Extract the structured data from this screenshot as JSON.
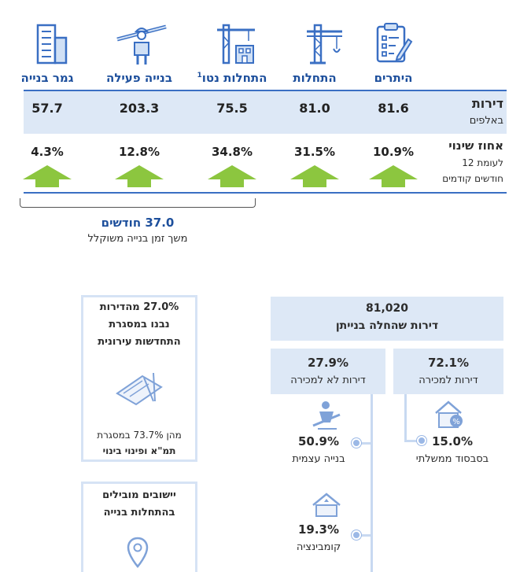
{
  "columns": [
    {
      "title": "היתרים",
      "icon": "clipboard-icon",
      "value": "81.6",
      "change": "10.9%"
    },
    {
      "title": "התחלות",
      "icon": "tower-crane-icon",
      "value": "81.0",
      "change": "31.5%"
    },
    {
      "title": "התחלות נטו",
      "title_sup": "1",
      "icon": "crane-building-icon",
      "value": "75.5",
      "change": "34.8%"
    },
    {
      "title": "בנייה פעילה",
      "icon": "construction-worker-icon",
      "value": "203.3",
      "change": "12.8%"
    },
    {
      "title": "גמר בנייה",
      "icon": "building-icon",
      "value": "57.7",
      "change": "4.3%"
    }
  ],
  "rows": {
    "apartments_label": "דירות",
    "apartments_sub": "באלפים",
    "change_label": "אחוז שינוי",
    "change_sub1": "לעומת 12",
    "change_sub2": "חודשים קודמים"
  },
  "duration": {
    "value": "37.0 חודשים",
    "label": "משך זמן בנייה משוקלל"
  },
  "starts_tree": {
    "total": "81,020",
    "total_label": "דירות שהחלה בנייתן",
    "for_sale_pct": "72.1%",
    "for_sale_label": "דירות למכירה",
    "not_for_sale_pct": "27.9%",
    "not_for_sale_label": "דירות לא למכירה",
    "subsidy_pct": "15.0%",
    "subsidy_label": "בסבסוד ממשלתי",
    "self_build_pct": "50.9%",
    "self_build_label": "בנייה עצמית",
    "combination_pct": "19.3%",
    "combination_label": "קומבינציה"
  },
  "urban_renewal": {
    "line1": "27.0% מהדירות",
    "line2": "נבנו במסגרת",
    "line3": "התחדשות עירונית",
    "detail1": "מהן 73.7% במסגרת",
    "detail2": "תמ\"א ופינוי בינוי"
  },
  "leading": {
    "line1": "יישובים מובילים",
    "line2": "בהתחלות בנייה"
  },
  "colors": {
    "accent": "#1d4f9c",
    "band": "#dde8f6",
    "arrow": "#8cc63f"
  }
}
